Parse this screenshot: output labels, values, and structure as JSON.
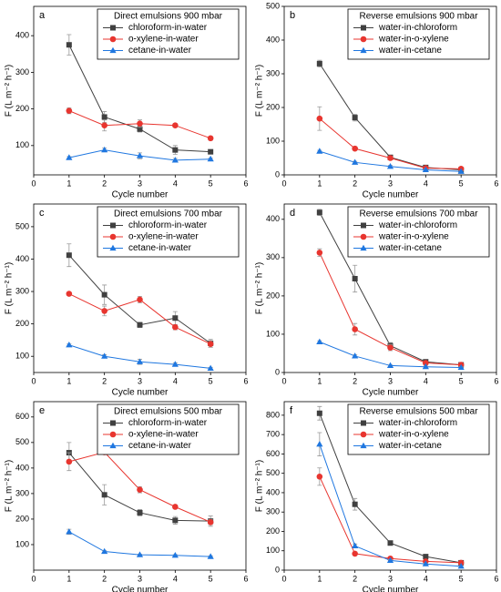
{
  "chart_data": [
    {
      "type": "line",
      "panel_label": "a",
      "title": "Direct emulsions 900 mbar",
      "xlabel": "Cycle number",
      "ylabel": "F (L m⁻² h⁻¹)",
      "x": [
        1,
        2,
        3,
        4,
        5
      ],
      "xlim": [
        0,
        6
      ],
      "xticks": [
        0,
        1,
        2,
        3,
        4,
        5,
        6
      ],
      "ylim": [
        20,
        480
      ],
      "yticks": [
        100,
        200,
        300,
        400
      ],
      "series": [
        {
          "name": "chloroform-in-water",
          "color": "#404040",
          "marker": "square",
          "values": [
            375,
            178,
            145,
            88,
            83
          ],
          "errors": [
            28,
            15,
            8,
            12,
            5
          ]
        },
        {
          "name": "o-xylene-in-water",
          "color": "#e8352f",
          "marker": "circle",
          "values": [
            195,
            155,
            160,
            155,
            120
          ],
          "errors": [
            8,
            15,
            10,
            5,
            5
          ]
        },
        {
          "name": "cetane-in-water",
          "color": "#1f77e0",
          "marker": "triangle",
          "values": [
            67,
            88,
            72,
            60,
            63
          ],
          "errors": [
            3,
            5,
            8,
            5,
            3
          ]
        }
      ]
    },
    {
      "type": "line",
      "panel_label": "b",
      "title": "Reverse emulsions 900 mbar",
      "xlabel": "Cycle number",
      "ylabel": "F (L m⁻² h⁻¹)",
      "x": [
        1,
        2,
        3,
        4,
        5
      ],
      "xlim": [
        0,
        6
      ],
      "xticks": [
        0,
        1,
        2,
        3,
        4,
        5,
        6
      ],
      "ylim": [
        0,
        500
      ],
      "yticks": [
        0,
        100,
        200,
        300,
        400,
        500
      ],
      "series": [
        {
          "name": "water-in-chloroform",
          "color": "#404040",
          "marker": "square",
          "values": [
            330,
            170,
            52,
            22,
            15
          ],
          "errors": [
            10,
            10,
            5,
            3,
            2
          ]
        },
        {
          "name": "water-in-o-xylene",
          "color": "#e8352f",
          "marker": "circle",
          "values": [
            167,
            78,
            50,
            20,
            18
          ],
          "errors": [
            35,
            5,
            5,
            3,
            2
          ]
        },
        {
          "name": "water-in-cetane",
          "color": "#1f77e0",
          "marker": "triangle",
          "values": [
            70,
            37,
            25,
            15,
            10
          ],
          "errors": [
            3,
            3,
            3,
            2,
            2
          ]
        }
      ]
    },
    {
      "type": "line",
      "panel_label": "c",
      "title": "Direct emulsions 700 mbar",
      "xlabel": "Cycle number",
      "ylabel": "F (L m⁻² h⁻¹)",
      "x": [
        1,
        2,
        3,
        4,
        5
      ],
      "xlim": [
        0,
        6
      ],
      "xticks": [
        0,
        1,
        2,
        3,
        4,
        5,
        6
      ],
      "ylim": [
        50,
        570
      ],
      "yticks": [
        100,
        200,
        300,
        400,
        500
      ],
      "series": [
        {
          "name": "chloroform-in-water",
          "color": "#404040",
          "marker": "square",
          "values": [
            412,
            290,
            197,
            218,
            140
          ],
          "errors": [
            35,
            30,
            8,
            20,
            12
          ]
        },
        {
          "name": "o-xylene-in-water",
          "color": "#e8352f",
          "marker": "circle",
          "values": [
            293,
            240,
            275,
            190,
            138
          ],
          "errors": [
            5,
            15,
            10,
            8,
            10
          ]
        },
        {
          "name": "cetane-in-water",
          "color": "#1f77e0",
          "marker": "triangle",
          "values": [
            135,
            100,
            83,
            75,
            63
          ],
          "errors": [
            3,
            5,
            8,
            5,
            3
          ]
        }
      ]
    },
    {
      "type": "line",
      "panel_label": "d",
      "title": "Reverse emulsions 700 mbar",
      "xlabel": "Cycle number",
      "ylabel": "F (L m⁻² h⁻¹)",
      "x": [
        1,
        2,
        3,
        4,
        5
      ],
      "xlim": [
        0,
        6
      ],
      "xticks": [
        0,
        1,
        2,
        3,
        4,
        5,
        6
      ],
      "ylim": [
        0,
        440
      ],
      "yticks": [
        0,
        100,
        200,
        300,
        400
      ],
      "series": [
        {
          "name": "water-in-chloroform",
          "color": "#404040",
          "marker": "square",
          "values": [
            418,
            245,
            70,
            28,
            20
          ],
          "errors": [
            8,
            35,
            8,
            3,
            2
          ]
        },
        {
          "name": "water-in-o-xylene",
          "color": "#e8352f",
          "marker": "circle",
          "values": [
            313,
            113,
            65,
            25,
            20
          ],
          "errors": [
            10,
            15,
            8,
            3,
            2
          ]
        },
        {
          "name": "water-in-cetane",
          "color": "#1f77e0",
          "marker": "triangle",
          "values": [
            80,
            43,
            18,
            15,
            13
          ],
          "errors": [
            3,
            3,
            2,
            2,
            2
          ]
        }
      ]
    },
    {
      "type": "line",
      "panel_label": "e",
      "title": "Direct emulsions 500 mbar",
      "xlabel": "Cycle number",
      "ylabel": "F (L m⁻² h⁻¹)",
      "x": [
        1,
        2,
        3,
        4,
        5
      ],
      "xlim": [
        0,
        6
      ],
      "xticks": [
        0,
        1,
        2,
        3,
        4,
        5,
        6
      ],
      "ylim": [
        0,
        660
      ],
      "yticks": [
        100,
        200,
        300,
        400,
        500,
        600
      ],
      "series": [
        {
          "name": "chloroform-in-water",
          "color": "#404040",
          "marker": "square",
          "values": [
            460,
            295,
            225,
            195,
            192
          ],
          "errors": [
            40,
            40,
            12,
            15,
            20
          ]
        },
        {
          "name": "o-xylene-in-water",
          "color": "#e8352f",
          "marker": "circle",
          "values": [
            425,
            462,
            315,
            248,
            188
          ],
          "errors": [
            35,
            5,
            12,
            5,
            10
          ]
        },
        {
          "name": "cetane-in-water",
          "color": "#1f77e0",
          "marker": "triangle",
          "values": [
            150,
            73,
            60,
            58,
            53
          ],
          "errors": [
            10,
            3,
            3,
            3,
            3
          ]
        }
      ]
    },
    {
      "type": "line",
      "panel_label": "f",
      "title": "Reverse emulsions 500 mbar",
      "xlabel": "Cycle number",
      "ylabel": "F (L m⁻² h⁻¹)",
      "x": [
        1,
        2,
        3,
        4,
        5
      ],
      "xlim": [
        0,
        6
      ],
      "xticks": [
        0,
        1,
        2,
        3,
        4,
        5,
        6
      ],
      "ylim": [
        0,
        870
      ],
      "yticks": [
        0,
        100,
        200,
        300,
        400,
        500,
        600,
        700,
        800
      ],
      "series": [
        {
          "name": "water-in-chloroform",
          "color": "#404040",
          "marker": "square",
          "values": [
            810,
            340,
            140,
            70,
            38
          ],
          "errors": [
            35,
            30,
            5,
            5,
            3
          ]
        },
        {
          "name": "water-in-o-xylene",
          "color": "#e8352f",
          "marker": "circle",
          "values": [
            483,
            85,
            60,
            45,
            38
          ],
          "errors": [
            45,
            8,
            5,
            3,
            3
          ]
        },
        {
          "name": "water-in-cetane",
          "color": "#1f77e0",
          "marker": "triangle",
          "values": [
            650,
            125,
            50,
            32,
            20
          ],
          "errors": [
            60,
            10,
            5,
            3,
            3
          ]
        }
      ]
    }
  ]
}
